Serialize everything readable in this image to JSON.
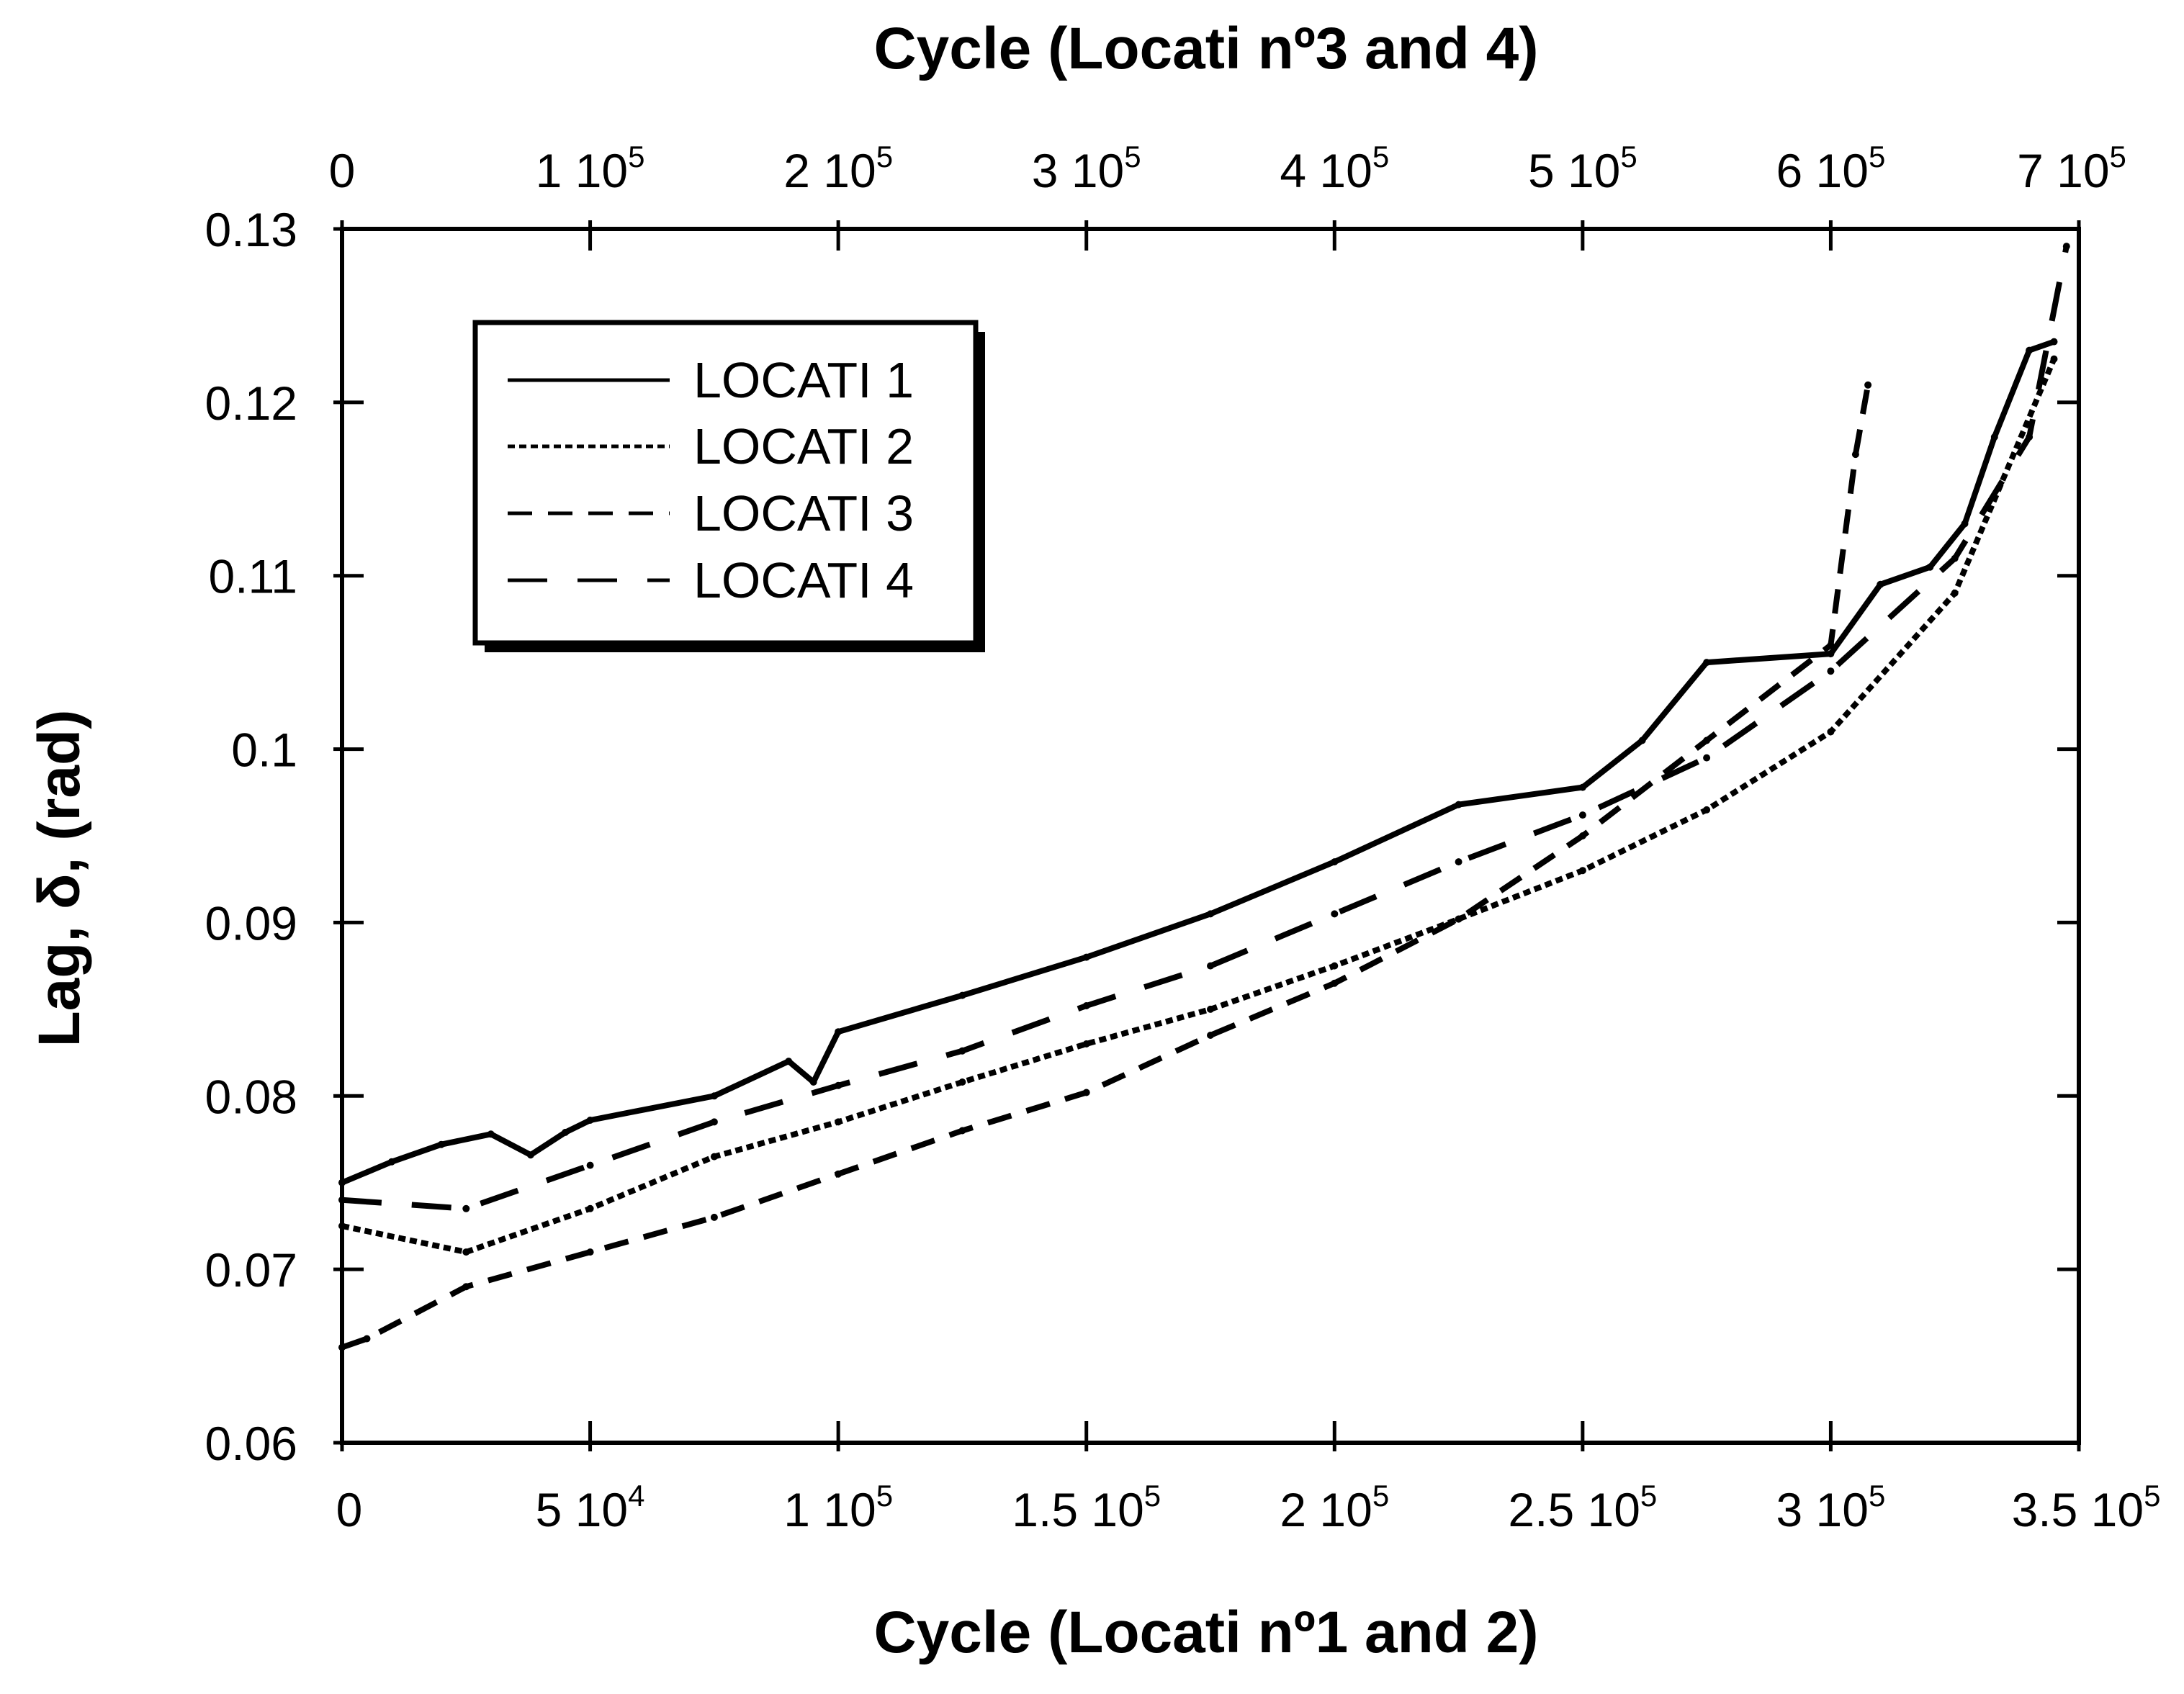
{
  "chart_data": {
    "type": "line",
    "title": "",
    "xlabel": "Cycle (Locati nº1 and 2)",
    "x2label": "Cycle (Locati nº3 and 4)",
    "ylabel": "Lag, δ, (rad)",
    "xlim": [
      0,
      350000
    ],
    "x2lim": [
      0,
      700000
    ],
    "ylim": [
      0.06,
      0.13
    ],
    "grid": false,
    "legend_position": "top-left",
    "yticks": [
      {
        "value": 0.06,
        "label": "0.06"
      },
      {
        "value": 0.07,
        "label": "0.07"
      },
      {
        "value": 0.08,
        "label": "0.08"
      },
      {
        "value": 0.09,
        "label": "0.09"
      },
      {
        "value": 0.1,
        "label": "0.1"
      },
      {
        "value": 0.11,
        "label": "0.11"
      },
      {
        "value": 0.12,
        "label": "0.12"
      },
      {
        "value": 0.13,
        "label": "0.13"
      }
    ],
    "xticks": [
      {
        "value": 0,
        "mant": "0",
        "exp": ""
      },
      {
        "value": 50000,
        "mant": "5 10",
        "exp": "4"
      },
      {
        "value": 100000,
        "mant": "1 10",
        "exp": "5"
      },
      {
        "value": 150000,
        "mant": "1.5 10",
        "exp": "5"
      },
      {
        "value": 200000,
        "mant": "2 10",
        "exp": "5"
      },
      {
        "value": 250000,
        "mant": "2.5 10",
        "exp": "5"
      },
      {
        "value": 300000,
        "mant": "3 10",
        "exp": "5"
      },
      {
        "value": 350000,
        "mant": "3.5 10",
        "exp": "5"
      }
    ],
    "x2ticks": [
      {
        "value": 0,
        "mant": "0",
        "exp": ""
      },
      {
        "value": 100000,
        "mant": "1 10",
        "exp": "5"
      },
      {
        "value": 200000,
        "mant": "2 10",
        "exp": "5"
      },
      {
        "value": 300000,
        "mant": "3 10",
        "exp": "5"
      },
      {
        "value": 400000,
        "mant": "4 10",
        "exp": "5"
      },
      {
        "value": 500000,
        "mant": "5 10",
        "exp": "5"
      },
      {
        "value": 600000,
        "mant": "6 10",
        "exp": "5"
      },
      {
        "value": 700000,
        "mant": "7 10",
        "exp": "5"
      }
    ],
    "series": [
      {
        "name": "LOCATI 1",
        "axis": "bottom",
        "style": "solid",
        "x": [
          0,
          10000,
          20000,
          30000,
          38000,
          45000,
          50000,
          75000,
          90000,
          95000,
          100000,
          125000,
          150000,
          175000,
          200000,
          225000,
          250000,
          262000,
          275000,
          300000,
          310000,
          320000,
          327000,
          333000,
          340000,
          345000
        ],
        "y": [
          0.075,
          0.0762,
          0.0772,
          0.0778,
          0.0766,
          0.0779,
          0.0786,
          0.08,
          0.082,
          0.0808,
          0.0837,
          0.0858,
          0.088,
          0.0905,
          0.0935,
          0.0968,
          0.0978,
          0.1005,
          0.105,
          0.1055,
          0.1095,
          0.1105,
          0.113,
          0.118,
          0.123,
          0.1235
        ]
      },
      {
        "name": "LOCATI 2",
        "axis": "bottom",
        "style": "dotted",
        "x": [
          0,
          25000,
          50000,
          75000,
          100000,
          125000,
          150000,
          175000,
          200000,
          225000,
          250000,
          275000,
          300000,
          325000,
          345000
        ],
        "y": [
          0.0725,
          0.071,
          0.0735,
          0.0765,
          0.0785,
          0.0808,
          0.083,
          0.085,
          0.0875,
          0.0902,
          0.093,
          0.0965,
          0.101,
          0.109,
          0.1225
        ]
      },
      {
        "name": "LOCATI 3",
        "axis": "top",
        "style": "dashed-short",
        "x": [
          0,
          10000,
          50000,
          100000,
          150000,
          200000,
          250000,
          300000,
          350000,
          400000,
          450000,
          500000,
          550000,
          600000,
          610000,
          615000
        ],
        "y": [
          0.0655,
          0.066,
          0.069,
          0.071,
          0.073,
          0.0755,
          0.078,
          0.0802,
          0.0835,
          0.0865,
          0.0902,
          0.095,
          0.1005,
          0.106,
          0.117,
          0.121
        ]
      },
      {
        "name": "LOCATI 4",
        "axis": "top",
        "style": "dashed-long",
        "x": [
          0,
          50000,
          100000,
          150000,
          200000,
          250000,
          300000,
          350000,
          400000,
          450000,
          500000,
          550000,
          600000,
          650000,
          680000,
          695000
        ],
        "y": [
          0.074,
          0.0735,
          0.076,
          0.0785,
          0.0806,
          0.0826,
          0.0852,
          0.0875,
          0.0905,
          0.0935,
          0.0962,
          0.0995,
          0.1045,
          0.111,
          0.118,
          0.129
        ]
      }
    ],
    "legend": [
      "LOCATI 1",
      "LOCATI 2",
      "LOCATI 3",
      "LOCATI 4"
    ]
  }
}
